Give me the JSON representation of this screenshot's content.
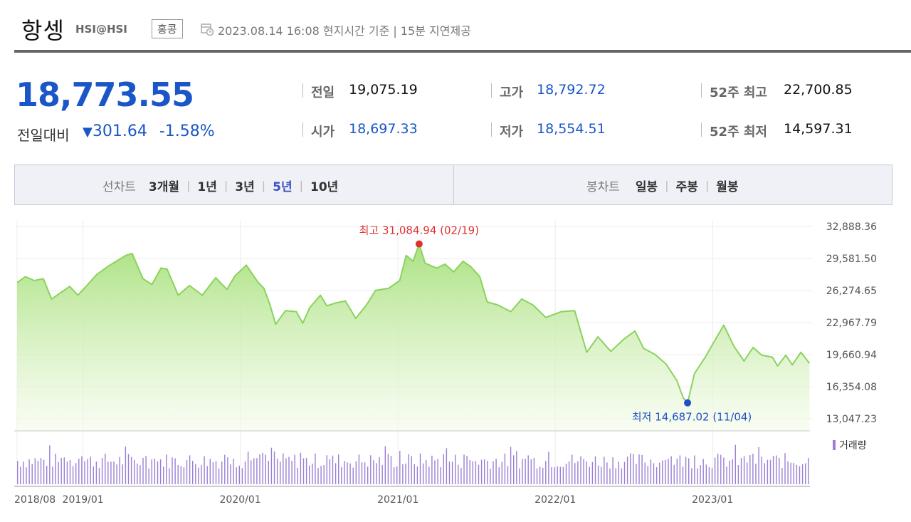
{
  "header": {
    "title": "항셍",
    "code": "HSI@HSI",
    "market_badge": "홍콩",
    "clock_icon": "clock-calendar-icon",
    "time_info": "2023.08.14 16:08 현지시간 기준 | 15분 지연제공"
  },
  "quote": {
    "price": "18,773.55",
    "change_label": "전일대비",
    "change_icon": "triangle-down-icon",
    "change_value": "301.64",
    "change_percent": "-1.58%",
    "down_color": "#1a56c8"
  },
  "stats": [
    {
      "label": "전일",
      "value": "19,075.19",
      "color": "#111111"
    },
    {
      "label": "시가",
      "value": "18,697.33",
      "color": "#1a56c8"
    },
    {
      "label": "고가",
      "value": "18,792.72",
      "color": "#1a56c8"
    },
    {
      "label": "저가",
      "value": "18,554.51",
      "color": "#1a56c8"
    },
    {
      "label": "52주 최고",
      "value": "22,700.85",
      "color": "#111111"
    },
    {
      "label": "52주 최저",
      "value": "14,597.31",
      "color": "#111111"
    }
  ],
  "tabs": {
    "line_label": "선차트",
    "line_options": [
      "3개월",
      "1년",
      "3년",
      "5년",
      "10년"
    ],
    "line_active": "5년",
    "candle_label": "봉차트",
    "candle_options": [
      "일봉",
      "주봉",
      "월봉"
    ],
    "active_color": "#3a50c0"
  },
  "chart_data": {
    "type": "area",
    "title": "",
    "xlabel": "",
    "ylabel": "",
    "ylim": [
      13047.23,
      32888.36
    ],
    "y_ticks": [
      "32,888.36",
      "29,581.50",
      "26,274.65",
      "22,967.79",
      "19,660.94",
      "16,354.08",
      "13,047.23"
    ],
    "x_ticks": [
      "2018/08",
      "2019/01",
      "2020/01",
      "2021/01",
      "2022/01",
      "2023/01"
    ],
    "x_tick_dates": [
      "2018-08",
      "2019-01",
      "2020-01",
      "2021-01",
      "2022-01",
      "2023-01"
    ],
    "x_range": [
      "2018-08",
      "2023-08"
    ],
    "grid": true,
    "annotations": {
      "max_label": "최고 31,084.94 (02/19)",
      "max_date": "2021-02-19",
      "max_value": 31084.94,
      "max_color": "#e03030",
      "min_label": "최저 14,687.02 (11/04)",
      "min_date": "2022-11-04",
      "min_value": 14687.02,
      "min_color": "#1f4fc7"
    },
    "line_color": "#8ad35c",
    "fill_color": "#c6efa6",
    "volume_label": "거래량",
    "volume_color": "#9b7fd4",
    "series": [
      {
        "points": [
          [
            "2018-08-01",
            27100
          ],
          [
            "2018-08-20",
            27700
          ],
          [
            "2018-09-10",
            27300
          ],
          [
            "2018-10-01",
            27500
          ],
          [
            "2018-10-20",
            25400
          ],
          [
            "2018-11-15",
            26200
          ],
          [
            "2018-12-01",
            26700
          ],
          [
            "2018-12-20",
            25800
          ],
          [
            "2019-01-10",
            26800
          ],
          [
            "2019-02-01",
            27900
          ],
          [
            "2019-03-01",
            28800
          ],
          [
            "2019-04-10",
            29900
          ],
          [
            "2019-04-25",
            30100
          ],
          [
            "2019-05-20",
            27500
          ],
          [
            "2019-06-10",
            26900
          ],
          [
            "2019-07-01",
            28600
          ],
          [
            "2019-07-15",
            28500
          ],
          [
            "2019-08-10",
            25800
          ],
          [
            "2019-09-05",
            26800
          ],
          [
            "2019-10-05",
            25800
          ],
          [
            "2019-11-05",
            27600
          ],
          [
            "2019-12-01",
            26400
          ],
          [
            "2019-12-20",
            27800
          ],
          [
            "2020-01-15",
            28900
          ],
          [
            "2020-02-10",
            27200
          ],
          [
            "2020-02-25",
            26500
          ],
          [
            "2020-03-10",
            24800
          ],
          [
            "2020-03-23",
            22800
          ],
          [
            "2020-04-15",
            24200
          ],
          [
            "2020-05-10",
            24100
          ],
          [
            "2020-05-25",
            22900
          ],
          [
            "2020-06-10",
            24500
          ],
          [
            "2020-07-05",
            25800
          ],
          [
            "2020-07-20",
            24700
          ],
          [
            "2020-08-10",
            25000
          ],
          [
            "2020-09-01",
            25200
          ],
          [
            "2020-09-25",
            23400
          ],
          [
            "2020-10-20",
            24800
          ],
          [
            "2020-11-10",
            26300
          ],
          [
            "2020-12-10",
            26500
          ],
          [
            "2021-01-05",
            27300
          ],
          [
            "2021-01-20",
            29900
          ],
          [
            "2021-02-05",
            29300
          ],
          [
            "2021-02-19",
            31084.94
          ],
          [
            "2021-03-05",
            29100
          ],
          [
            "2021-04-01",
            28600
          ],
          [
            "2021-04-20",
            29000
          ],
          [
            "2021-05-10",
            28200
          ],
          [
            "2021-06-01",
            29300
          ],
          [
            "2021-06-20",
            28700
          ],
          [
            "2021-07-10",
            27700
          ],
          [
            "2021-07-27",
            25100
          ],
          [
            "2021-08-20",
            24800
          ],
          [
            "2021-09-20",
            24100
          ],
          [
            "2021-10-15",
            25400
          ],
          [
            "2021-11-10",
            24800
          ],
          [
            "2021-12-10",
            23500
          ],
          [
            "2022-01-15",
            24100
          ],
          [
            "2022-02-15",
            24200
          ],
          [
            "2022-03-15",
            19900
          ],
          [
            "2022-04-10",
            21500
          ],
          [
            "2022-05-10",
            20000
          ],
          [
            "2022-06-10",
            21300
          ],
          [
            "2022-07-05",
            22100
          ],
          [
            "2022-07-25",
            20300
          ],
          [
            "2022-08-20",
            19700
          ],
          [
            "2022-09-15",
            18700
          ],
          [
            "2022-10-10",
            17000
          ],
          [
            "2022-10-25",
            15200
          ],
          [
            "2022-11-04",
            14687.02
          ],
          [
            "2022-11-20",
            17700
          ],
          [
            "2022-12-15",
            19400
          ],
          [
            "2023-01-10",
            21400
          ],
          [
            "2023-01-27",
            22700
          ],
          [
            "2023-02-20",
            20500
          ],
          [
            "2023-03-15",
            19000
          ],
          [
            "2023-04-05",
            20400
          ],
          [
            "2023-04-25",
            19600
          ],
          [
            "2023-05-20",
            19400
          ],
          [
            "2023-06-01",
            18500
          ],
          [
            "2023-06-20",
            19600
          ],
          [
            "2023-07-05",
            18600
          ],
          [
            "2023-07-25",
            19900
          ],
          [
            "2023-08-14",
            18773.55
          ]
        ]
      }
    ]
  }
}
